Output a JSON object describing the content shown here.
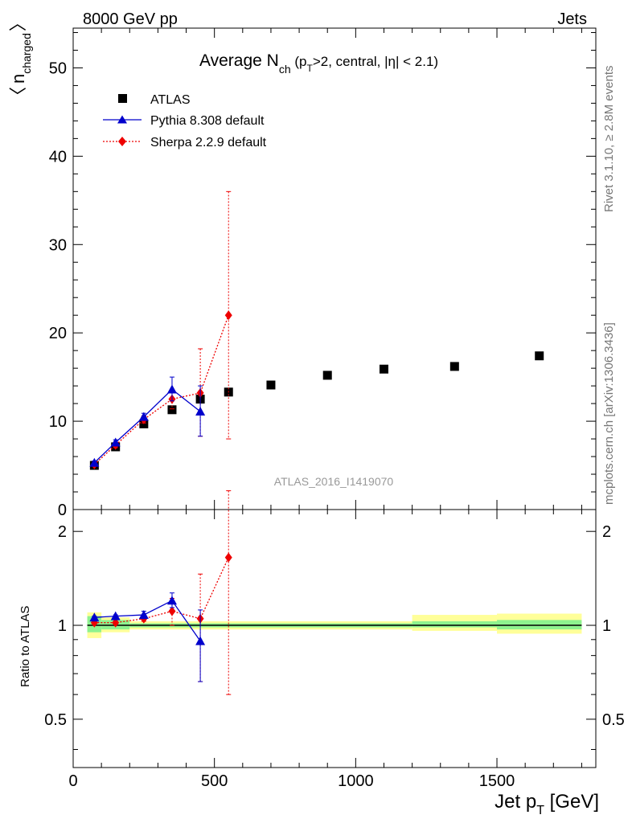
{
  "header": {
    "left": "8000 GeV pp",
    "right": "Jets"
  },
  "side_labels": {
    "rivet": "Rivet 3.1.10, ≥ 2.8M events",
    "mcplots": "mcplots.cern.ch [arXiv:1306.3436]"
  },
  "chart_data": [
    {
      "type": "scatter",
      "title": "Average N_ch (p_T>2, central, |η| < 2.1)",
      "title_parts": {
        "main": "Average N",
        "sub": "ch",
        "rest1": " (p",
        "sub2": "T",
        "rest2": ">2, central, ",
        "eta": "|η| < 2.1)"
      },
      "ylabel": "〈 n_charged 〉",
      "ylabel_parts": {
        "open": "〈",
        "main": "n",
        "sub": "charged",
        "close": "〉"
      },
      "xlim": [
        0,
        1850
      ],
      "ylim": [
        0,
        54.5
      ],
      "yticks": [
        0,
        10,
        20,
        30,
        40,
        50
      ],
      "watermark": "ATLAS_2016_I1419070",
      "legend_position": "top-left",
      "series": [
        {
          "name": "ATLAS",
          "marker": "square",
          "color": "#000000",
          "x": [
            75,
            150,
            250,
            350,
            450,
            550,
            700,
            900,
            1100,
            1350,
            1650
          ],
          "y": [
            5.0,
            7.1,
            9.7,
            11.3,
            12.5,
            13.3,
            14.1,
            15.2,
            15.9,
            16.2,
            17.4
          ],
          "xerr": [
            25,
            50,
            50,
            50,
            50,
            50,
            100,
            100,
            100,
            150,
            150
          ]
        },
        {
          "name": "Pythia 8.308 default",
          "marker": "triangle",
          "line": "solid",
          "color": "#0000cc",
          "x": [
            75,
            150,
            250,
            350,
            450
          ],
          "y": [
            5.3,
            7.6,
            10.5,
            13.6,
            11.1
          ],
          "yerr_low": [
            0.2,
            0.3,
            0.4,
            1.3,
            2.8
          ],
          "yerr_high": [
            0.2,
            0.3,
            0.4,
            1.4,
            2.9
          ]
        },
        {
          "name": "Sherpa 2.2.9 default",
          "marker": "diamond",
          "line": "dotted",
          "color": "#ee0000",
          "x": [
            75,
            150,
            250,
            350,
            450,
            550
          ],
          "y": [
            5.1,
            7.3,
            10.2,
            12.5,
            13.2,
            22.0
          ],
          "yerr_low": [
            0.2,
            0.3,
            0.4,
            1.1,
            4.9,
            14.0
          ],
          "yerr_high": [
            0.2,
            0.3,
            0.4,
            1.1,
            5.0,
            14.0
          ]
        }
      ]
    },
    {
      "type": "scatter",
      "ylabel": "Ratio to ATLAS",
      "xlabel": "Jet p_T [GeV]",
      "xlabel_parts": {
        "main": "Jet p",
        "sub": "T",
        "rest": " [GeV]"
      },
      "xlim": [
        0,
        1850
      ],
      "ylim": [
        0.35,
        2.35
      ],
      "xticks": [
        0,
        500,
        1000,
        1500
      ],
      "yticks": [
        0.5,
        1,
        2
      ],
      "reference_line": 1,
      "bands": [
        {
          "x0": 50,
          "x1": 100,
          "inner": [
            0.95,
            1.07
          ],
          "outer": [
            0.91,
            1.1
          ]
        },
        {
          "x0": 100,
          "x1": 200,
          "inner": [
            0.97,
            1.04
          ],
          "outer": [
            0.95,
            1.06
          ]
        },
        {
          "x0": 200,
          "x1": 1200,
          "inner": [
            0.985,
            1.015
          ],
          "outer": [
            0.97,
            1.03
          ]
        },
        {
          "x0": 1200,
          "x1": 1500,
          "inner": [
            0.985,
            1.03
          ],
          "outer": [
            0.96,
            1.08
          ]
        },
        {
          "x0": 1500,
          "x1": 1800,
          "inner": [
            0.97,
            1.04
          ],
          "outer": [
            0.94,
            1.09
          ]
        }
      ],
      "band_colors": {
        "inner": "#8ef28e",
        "outer": "#ffff99"
      },
      "series": [
        {
          "name": "Pythia 8.308 default",
          "marker": "triangle",
          "line": "solid",
          "color": "#0000cc",
          "x": [
            75,
            150,
            250,
            350,
            450
          ],
          "y": [
            1.06,
            1.07,
            1.08,
            1.2,
            0.89
          ],
          "yerr_low": [
            0.01,
            0.01,
            0.03,
            0.06,
            0.23
          ],
          "yerr_high": [
            0.01,
            0.01,
            0.03,
            0.07,
            0.23
          ]
        },
        {
          "name": "Sherpa 2.2.9 default",
          "marker": "diamond",
          "line": "dotted",
          "color": "#ee0000",
          "x": [
            75,
            150,
            250,
            350,
            450,
            550
          ],
          "y": [
            1.02,
            1.02,
            1.05,
            1.11,
            1.05,
            1.65
          ],
          "yerr_low": [
            0.01,
            0.01,
            0.02,
            0.11,
            0.39,
            1.05
          ],
          "yerr_high": [
            0.01,
            0.01,
            0.02,
            0.11,
            0.41,
            1.05
          ]
        }
      ]
    }
  ]
}
